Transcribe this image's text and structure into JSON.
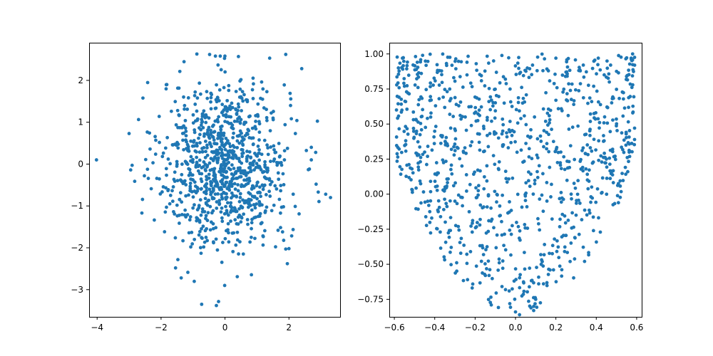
{
  "chart_data": [
    {
      "type": "scatter",
      "marker_color": "#1f77b4",
      "n_points_approx": 1000,
      "distribution": "bivariate standard normal (2D Gaussian cloud centred at origin)",
      "xlim": [
        -4.25,
        3.6
      ],
      "ylim": [
        -3.65,
        2.9
      ],
      "xticks": [
        -4,
        -2,
        0,
        2
      ],
      "yticks": [
        -3,
        -2,
        -1,
        0,
        1,
        2
      ],
      "xtick_labels": [
        "−4",
        "−2",
        "0",
        "2"
      ],
      "ytick_labels": [
        "−3",
        "−2",
        "−1",
        "0",
        "1",
        "2"
      ],
      "representative_points": [
        [
          -4.02,
          0.1
        ],
        [
          3.3,
          -0.8
        ],
        [
          3.15,
          -0.72
        ],
        [
          2.85,
          -0.48
        ],
        [
          2.7,
          0.4
        ],
        [
          2.4,
          2.28
        ],
        [
          1.9,
          2.62
        ],
        [
          -0.88,
          2.63
        ],
        [
          -0.3,
          2.58
        ],
        [
          0.42,
          2.57
        ],
        [
          -0.73,
          -3.35
        ],
        [
          -0.27,
          -3.38
        ],
        [
          -0.01,
          -2.9
        ],
        [
          -1.37,
          -2.72
        ],
        [
          1.95,
          -2.38
        ],
        [
          1.9,
          -2.03
        ],
        [
          2.0,
          -2.02
        ],
        [
          -3.0,
          0.73
        ],
        [
          -2.95,
          -0.14
        ],
        [
          -2.6,
          -1.17
        ],
        [
          1.8,
          -1.62
        ],
        [
          -1.82,
          1.9
        ],
        [
          2.05,
          1.4
        ],
        [
          2.7,
          0.1
        ]
      ],
      "grid": false,
      "title": "",
      "xlabel": "",
      "ylabel": ""
    },
    {
      "type": "scatter",
      "marker_color": "#1f77b4",
      "n_points_approx": 1000,
      "distribution": "uniform over region between y = 3x^2 - 0.85 and y = 1",
      "xlim": [
        -0.625,
        0.625
      ],
      "ylim": [
        -0.875,
        1.08
      ],
      "xticks": [
        -0.6,
        -0.4,
        -0.2,
        0.0,
        0.2,
        0.4,
        0.6
      ],
      "yticks": [
        -0.75,
        -0.5,
        -0.25,
        0.0,
        0.25,
        0.5,
        0.75,
        1.0
      ],
      "xtick_labels": [
        "−0.6",
        "−0.4",
        "−0.2",
        "0.0",
        "0.2",
        "0.4",
        "0.6"
      ],
      "ytick_labels": [
        "−0.75",
        "−0.50",
        "−0.25",
        "0.00",
        "0.25",
        "0.50",
        "0.75",
        "1.00"
      ],
      "representative_points": [
        [
          -0.58,
          0.9
        ],
        [
          -0.56,
          0.97
        ],
        [
          -0.46,
          0.99
        ],
        [
          0.58,
          1.0
        ],
        [
          0.59,
          0.92
        ],
        [
          0.55,
          0.84
        ],
        [
          -0.55,
          0.77
        ],
        [
          0.0,
          -0.84
        ],
        [
          0.02,
          -0.86
        ],
        [
          0.09,
          -0.83
        ],
        [
          -0.12,
          -0.79
        ],
        [
          0.1,
          -0.75
        ],
        [
          0.2,
          0.97
        ],
        [
          -0.05,
          0.82
        ],
        [
          0.25,
          0.87
        ],
        [
          0.41,
          0.97
        ],
        [
          0.45,
          0.25
        ],
        [
          -0.45,
          0.3
        ],
        [
          -0.3,
          -0.05
        ],
        [
          0.3,
          -0.15
        ]
      ],
      "grid": false,
      "title": "",
      "xlabel": "",
      "ylabel": ""
    }
  ]
}
